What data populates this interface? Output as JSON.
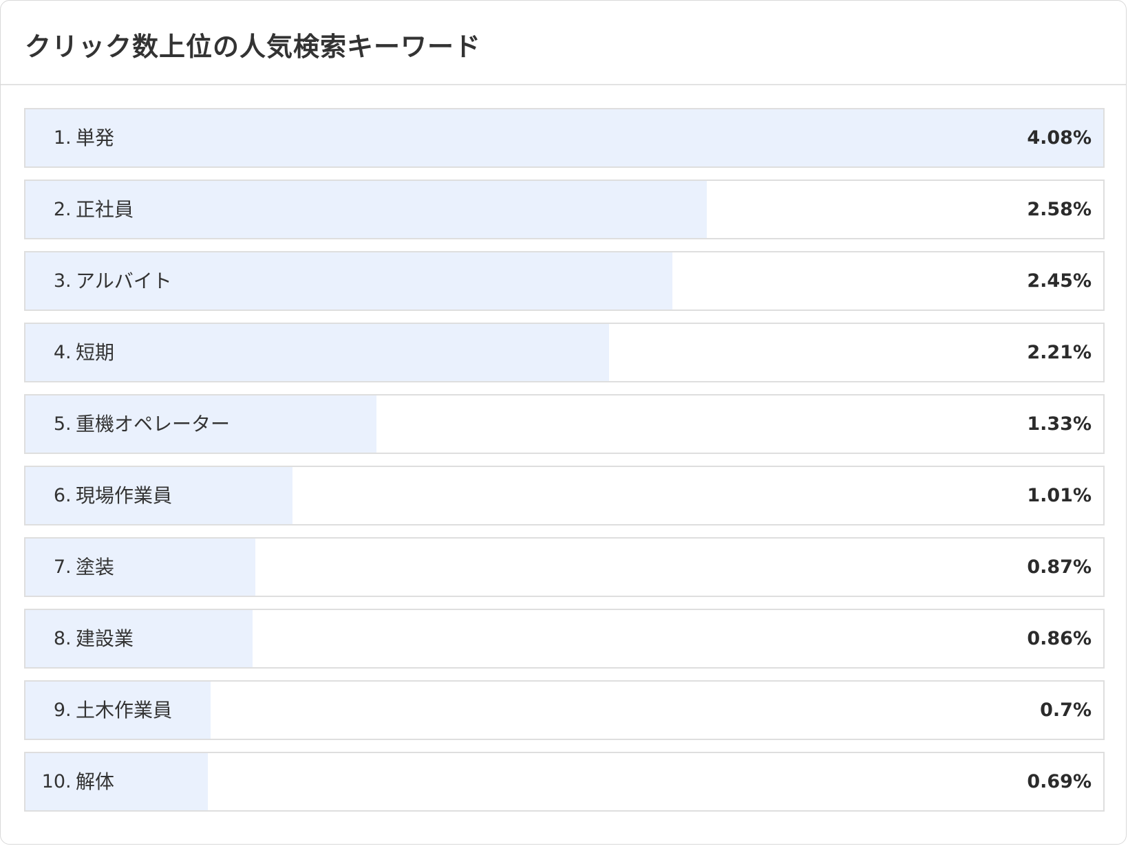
{
  "panel": {
    "title": "クリック数上位の人気検索キーワード"
  },
  "keywords": [
    {
      "rank": "1",
      "keyword": "単発",
      "value": "4.08%",
      "share": 4.08
    },
    {
      "rank": "2",
      "keyword": "正社員",
      "value": "2.58%",
      "share": 2.58
    },
    {
      "rank": "3",
      "keyword": "アルバイト",
      "value": "2.45%",
      "share": 2.45
    },
    {
      "rank": "4",
      "keyword": "短期",
      "value": "2.21%",
      "share": 2.21
    },
    {
      "rank": "5",
      "keyword": "重機オペレーター",
      "value": "1.33%",
      "share": 1.33
    },
    {
      "rank": "6",
      "keyword": "現場作業員",
      "value": "1.01%",
      "share": 1.01
    },
    {
      "rank": "7",
      "keyword": "塗装",
      "value": "0.87%",
      "share": 0.87
    },
    {
      "rank": "8",
      "keyword": "建設業",
      "value": "0.86%",
      "share": 0.86
    },
    {
      "rank": "9",
      "keyword": "土木作業員",
      "value": "0.7%",
      "share": 0.7
    },
    {
      "rank": "10",
      "keyword": "解体",
      "value": "0.69%",
      "share": 0.69
    }
  ],
  "colors": {
    "bar_fill": "#eaf1fd",
    "row_border": "#dedede"
  }
}
